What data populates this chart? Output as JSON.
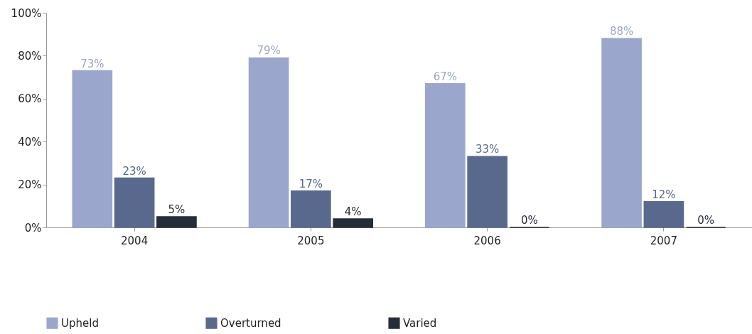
{
  "chart_data": {
    "type": "bar",
    "categories": [
      "2004",
      "2005",
      "2006",
      "2007"
    ],
    "series": [
      {
        "name": "Upheld",
        "color": "#9aa6cc",
        "values": [
          73,
          79,
          67,
          88
        ],
        "value_labels": [
          "73%",
          "79%",
          "67%",
          "88%"
        ]
      },
      {
        "name": "Overturned",
        "color": "#59698e",
        "values": [
          23,
          17,
          33,
          12
        ],
        "value_labels": [
          "23%",
          "17%",
          "33%",
          "12%"
        ]
      },
      {
        "name": "Varied",
        "color": "#262d3a",
        "values": [
          5,
          4,
          0,
          0
        ],
        "value_labels": [
          "5%",
          "4%",
          "0%",
          "0%"
        ]
      }
    ],
    "ylim": [
      0,
      100
    ],
    "yticks": [
      {
        "value": 0,
        "label": "0%"
      },
      {
        "value": 20,
        "label": "20%"
      },
      {
        "value": 40,
        "label": "40%"
      },
      {
        "value": 60,
        "label": "60%"
      },
      {
        "value": 80,
        "label": "80%"
      },
      {
        "value": 100,
        "label": "100%"
      }
    ],
    "legend": "bottom"
  }
}
